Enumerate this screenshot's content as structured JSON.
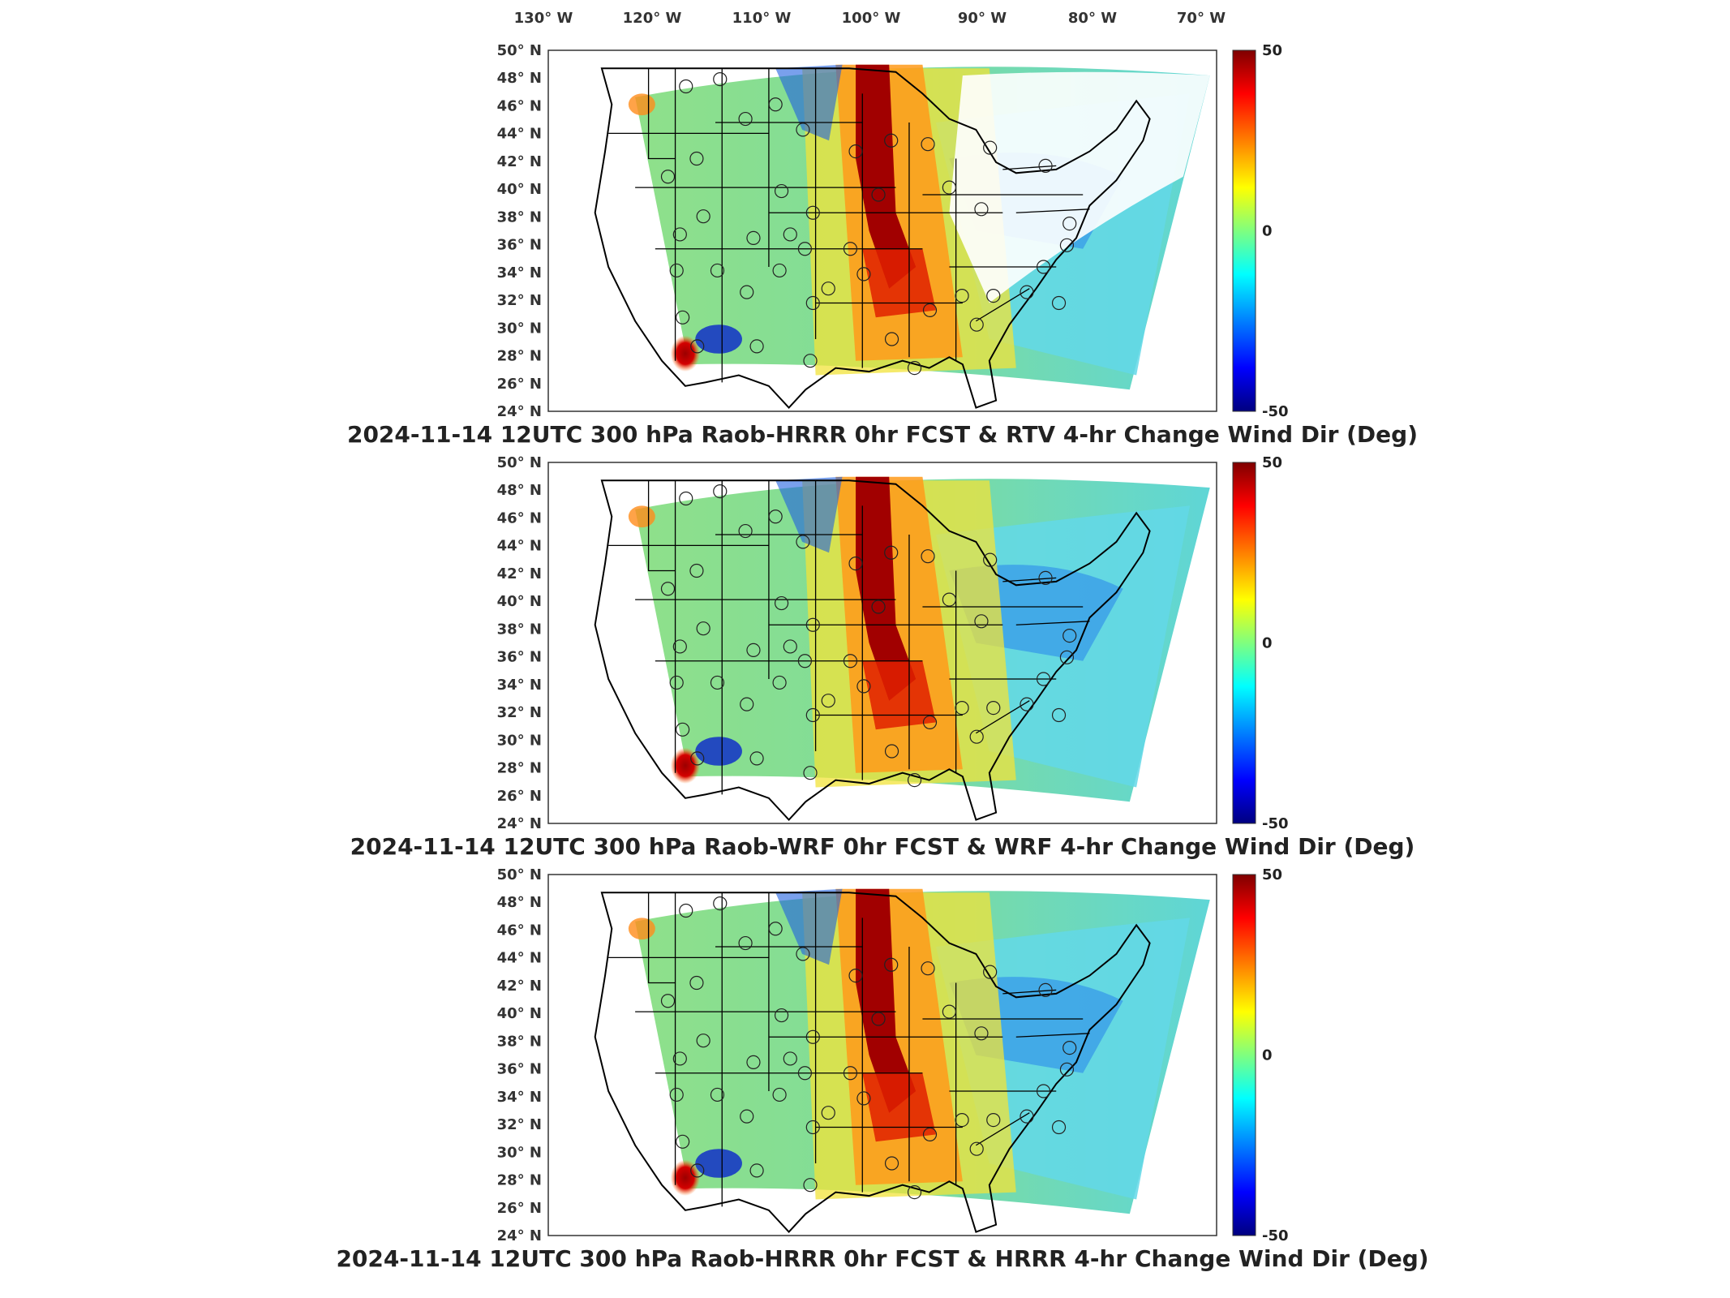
{
  "lon_labels": [
    "130° W",
    "120° W",
    "110° W",
    "100° W",
    "90° W",
    "80° W",
    "70° W"
  ],
  "lat_labels": [
    "50° N",
    "48° N",
    "46° N",
    "44° N",
    "42° N",
    "40° N",
    "38° N",
    "36° N",
    "34° N",
    "32° N",
    "30° N",
    "28° N",
    "26° N",
    "24° N"
  ],
  "colorbar": {
    "max": "50",
    "mid": "0",
    "min": "-50",
    "colors": [
      "#00007f",
      "#0000ff",
      "#007fff",
      "#00ffff",
      "#7fff7f",
      "#ffff00",
      "#ff7f00",
      "#ff0000",
      "#7f0000"
    ]
  },
  "panels": [
    {
      "title": "2024-11-14 12UTC 300 hPa Raob-HRRR 0hr FCST & RTV 4-hr Change Wind Dir (Deg)"
    },
    {
      "title": "2024-11-14 12UTC 300 hPa Raob-WRF 0hr FCST & WRF 4-hr Change Wind Dir (Deg)"
    },
    {
      "title": "2024-11-14 12UTC 300 hPa Raob-HRRR 0hr FCST & HRRR 4-hr Change Wind Dir (Deg)"
    }
  ],
  "map": {
    "domain": "CONUS Lambert conformal, 300 hPa wind-direction difference field",
    "raob_station_count": 45
  }
}
